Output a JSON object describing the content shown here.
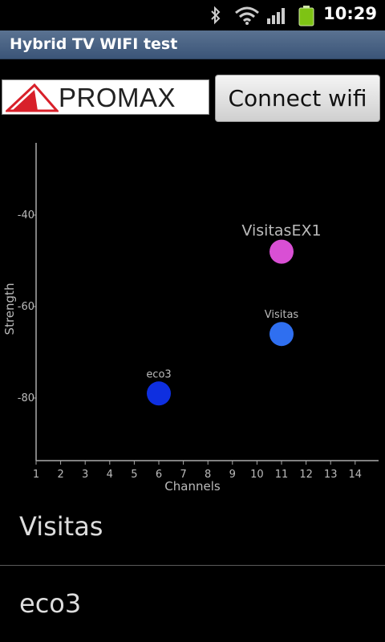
{
  "status_bar": {
    "time": "10:29",
    "icons": [
      "bluetooth-icon",
      "wifi-signal-icon",
      "cell-signal-icon",
      "battery-icon"
    ],
    "battery_color": "#7ec314"
  },
  "app": {
    "title": "Hybrid TV WIFI test",
    "title_bar_color": "#4a6485"
  },
  "logo": {
    "text": "PROMAX",
    "mark_color": "#d8202a"
  },
  "connect_button": {
    "label": "Connect wifi"
  },
  "chart_data": {
    "type": "scatter",
    "xlabel": "Channels",
    "ylabel": "Strength",
    "xlim": [
      1,
      15
    ],
    "ylim": [
      -100,
      -25
    ],
    "x_ticks": [
      "1",
      "2",
      "3",
      "4",
      "5",
      "6",
      "7",
      "8",
      "9",
      "10",
      "11",
      "12",
      "13",
      "14"
    ],
    "y_ticks": [
      -40,
      -60,
      -80
    ],
    "points": [
      {
        "name": "VisitasEX1",
        "x": 11,
        "y": -48,
        "color": "#d94fd4"
      },
      {
        "name": "Visitas",
        "x": 11,
        "y": -66,
        "color": "#2f6ff0"
      },
      {
        "name": "eco3",
        "x": 6,
        "y": -79,
        "color": "#0e2fe0"
      }
    ]
  },
  "network_list": [
    {
      "label": "Visitas"
    },
    {
      "label": "eco3"
    }
  ]
}
